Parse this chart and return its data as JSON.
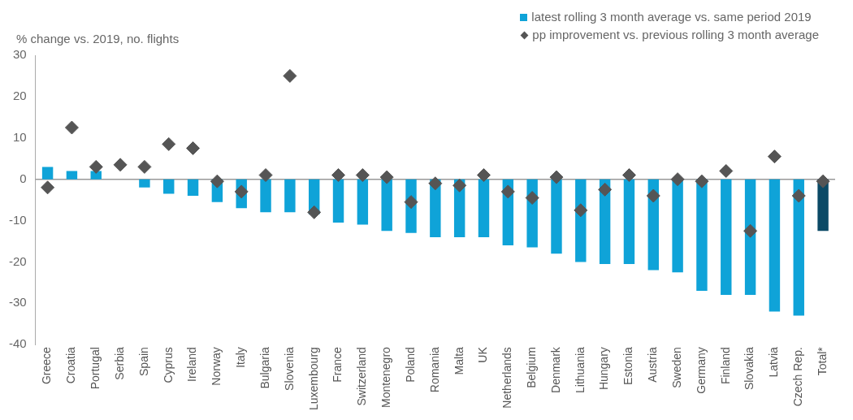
{
  "chart_data": {
    "type": "bar",
    "ylabel": "% change vs. 2019, no. flights",
    "categories": [
      "Greece",
      "Croatia",
      "Portugal",
      "Serbia",
      "Spain",
      "Cyprus",
      "Ireland",
      "Norway",
      "Italy",
      "Bulgaria",
      "Slovenia",
      "Luxembourg",
      "France",
      "Switzerland",
      "Montenegro",
      "Poland",
      "Romania",
      "Malta",
      "UK",
      "Netherlands",
      "Belgium",
      "Denmark",
      "Lithuania",
      "Hungary",
      "Estonia",
      "Austria",
      "Sweden",
      "Germany",
      "Finland",
      "Slovakia",
      "Latvia",
      "Czech Rep.",
      "Total*"
    ],
    "series": [
      {
        "name": "latest rolling 3 month average vs. same period 2019",
        "color": "#0fa3d8",
        "colors": [
          "#0fa3d8",
          "#0fa3d8",
          "#0fa3d8",
          "#0fa3d8",
          "#0fa3d8",
          "#0fa3d8",
          "#0fa3d8",
          "#0fa3d8",
          "#0fa3d8",
          "#0fa3d8",
          "#0fa3d8",
          "#0fa3d8",
          "#0fa3d8",
          "#0fa3d8",
          "#0fa3d8",
          "#0fa3d8",
          "#0fa3d8",
          "#0fa3d8",
          "#0fa3d8",
          "#0fa3d8",
          "#0fa3d8",
          "#0fa3d8",
          "#0fa3d8",
          "#0fa3d8",
          "#0fa3d8",
          "#0fa3d8",
          "#0fa3d8",
          "#0fa3d8",
          "#0fa3d8",
          "#0fa3d8",
          "#0fa3d8",
          "#0fa3d8",
          "#0b4a66"
        ],
        "values": [
          3,
          2,
          2,
          0,
          -2,
          -3.5,
          -4,
          -5.5,
          -7,
          -8,
          -8,
          -8.5,
          -10.5,
          -11,
          -12.5,
          -13,
          -14,
          -14,
          -14,
          -16,
          -16.5,
          -18,
          -20,
          -20.5,
          -20.5,
          -22,
          -22.5,
          -27,
          -28,
          -28,
          -32,
          -33,
          -12.5
        ]
      },
      {
        "name": "pp improvement vs. previous rolling 3 month average",
        "type": "scatter",
        "marker": "diamond",
        "color": "#555555",
        "x": [
          "Greece",
          "Croatia",
          "Portugal",
          "Serbia",
          "Spain",
          "Cyprus",
          "Ireland",
          "Norway",
          "Italy",
          "Bulgaria",
          "Slovenia",
          "Luxembourg",
          "France",
          "Switzerland",
          "Montenegro",
          "Poland",
          "Romania",
          "Malta",
          "UK",
          "Netherlands",
          "Belgium",
          "Denmark",
          "Lithuania",
          "Hungary",
          "Estonia",
          "Austria",
          "Sweden",
          "Germany",
          "Finland",
          "Slovakia",
          "Latvia",
          "Czech Rep.",
          "Total*"
        ],
        "values": [
          -2,
          12.5,
          3,
          3.5,
          3,
          8.5,
          7.5,
          -0.5,
          -3,
          1,
          25,
          -8,
          1,
          1,
          0.5,
          -5.5,
          -1,
          -1.5,
          1,
          -3,
          -4.5,
          0.5,
          -7.5,
          -2.5,
          1,
          -4,
          0,
          -0.5,
          2,
          -12.5,
          5.5,
          -4,
          -0.5
        ]
      }
    ],
    "ylim": [
      -40,
      30
    ],
    "yticks": [
      -40,
      -30,
      -20,
      -10,
      0,
      10,
      20,
      30
    ],
    "legend": "top right"
  }
}
